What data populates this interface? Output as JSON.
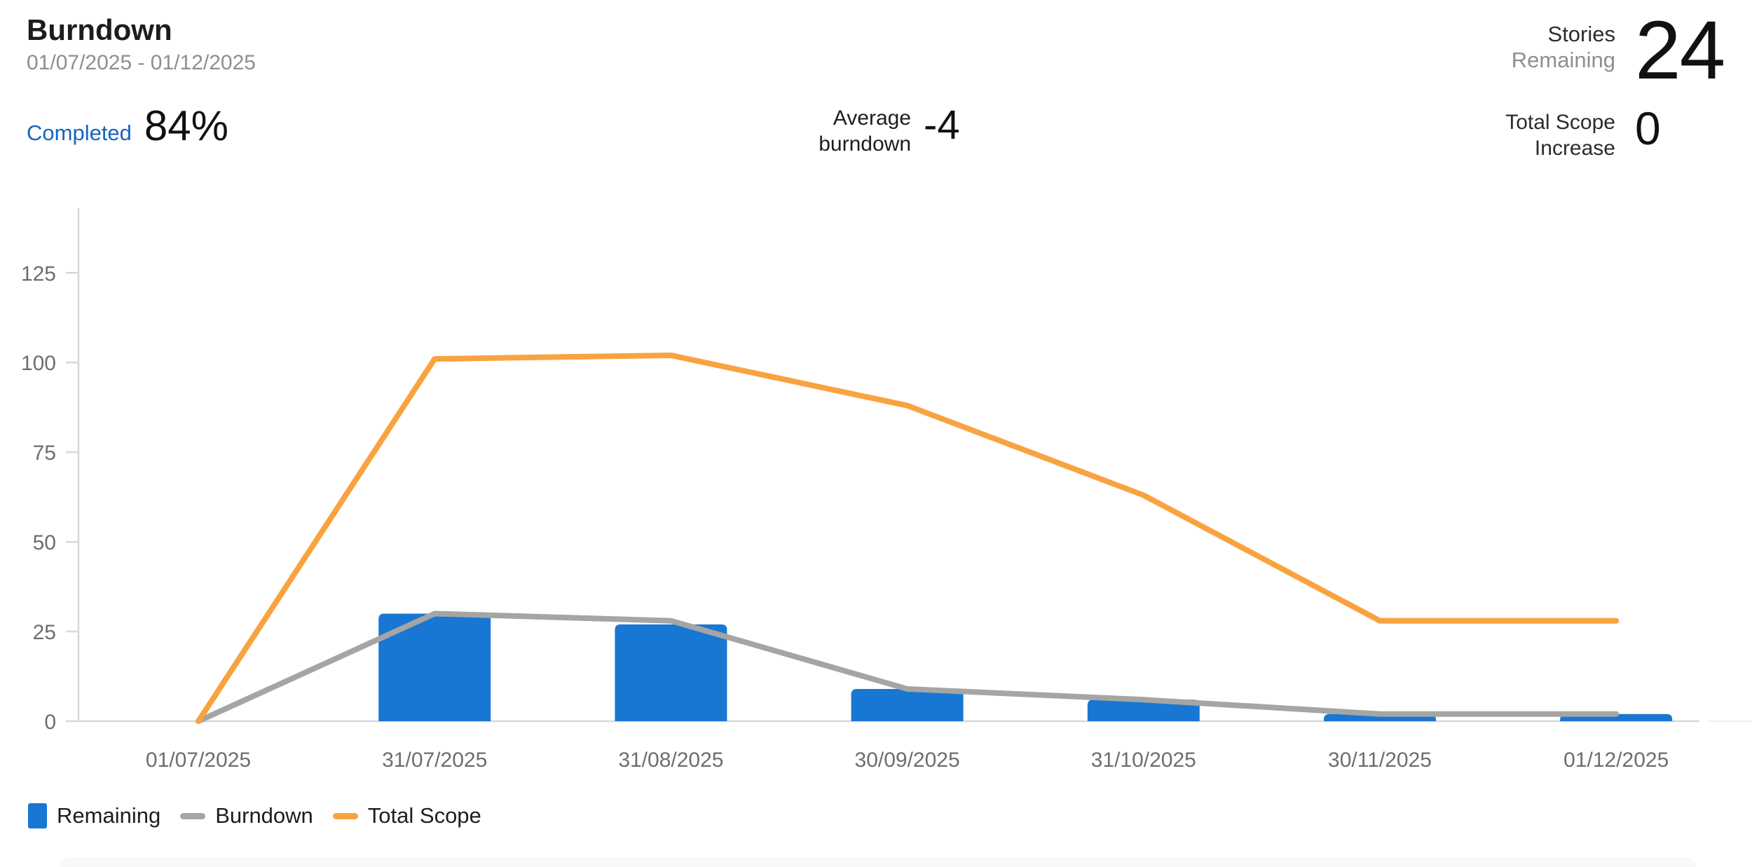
{
  "header": {
    "title": "Burndown",
    "date_range": "01/07/2025 - 01/12/2025"
  },
  "stats": {
    "completed": {
      "label": "Completed",
      "value": "84%"
    },
    "average_burndown": {
      "label_line1": "Average",
      "label_line2": "burndown",
      "value": "-4"
    },
    "stories_remaining": {
      "label_line1": "Stories",
      "label_line2": "Remaining",
      "value": "24"
    },
    "total_scope_increase": {
      "label_line1": "Total Scope",
      "label_line2": "Increase",
      "value": "0"
    }
  },
  "legend": [
    {
      "label": "Remaining",
      "swatch": "square",
      "color": "#1877D2"
    },
    {
      "label": "Burndown",
      "swatch": "line",
      "color": "#A5A5A5"
    },
    {
      "label": "Total Scope",
      "swatch": "line",
      "color": "#F9A340"
    }
  ],
  "colors": {
    "bar_blue": "#1877D2",
    "burndown_gray": "#A5A5A5",
    "total_scope_orange": "#F9A340",
    "axis": "#D8D8DC",
    "axis_text": "#6d6d72",
    "completed_blue": "#1565C0"
  },
  "chart_data": {
    "type": "bar",
    "subtype": "bar-and-line combo",
    "categories": [
      "01/07/2025",
      "31/07/2025",
      "31/08/2025",
      "30/09/2025",
      "31/10/2025",
      "30/11/2025",
      "01/12/2025"
    ],
    "series": [
      {
        "name": "Remaining",
        "type": "bar",
        "color": "#1877D2",
        "values": [
          0,
          30,
          27,
          9,
          6,
          2,
          2
        ]
      },
      {
        "name": "Burndown",
        "type": "line",
        "color": "#A5A5A5",
        "values": [
          0,
          30,
          28,
          9,
          6,
          2,
          2
        ]
      },
      {
        "name": "Total Scope",
        "type": "line",
        "color": "#F9A340",
        "values": [
          0,
          101,
          102,
          88,
          63,
          28,
          28
        ]
      }
    ],
    "title": "Burndown",
    "xlabel": "",
    "ylabel": "",
    "yticks": [
      0,
      25,
      50,
      75,
      100,
      125
    ],
    "ylim": [
      0,
      140
    ],
    "grid": false,
    "legend_position": "bottom-left"
  }
}
